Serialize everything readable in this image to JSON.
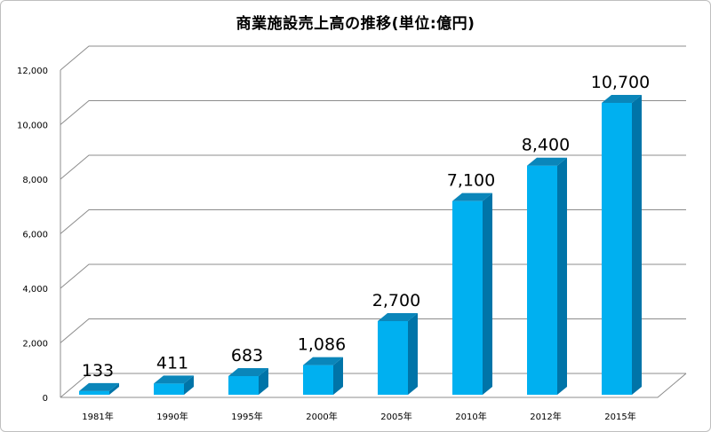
{
  "chart_data": {
    "type": "bar",
    "title": "商業施設売上高の推移(単位:億円)",
    "categories": [
      "1981年",
      "1990年",
      "1995年",
      "2000年",
      "2005年",
      "2010年",
      "2012年",
      "2015年"
    ],
    "values": [
      133,
      411,
      683,
      1086,
      2700,
      7100,
      8400,
      10700
    ],
    "data_labels": [
      "133",
      "411",
      "683",
      "1,086",
      "2,700",
      "7,100",
      "8,400",
      "10,700"
    ],
    "yticks": [
      "0",
      "2,000",
      "4,000",
      "6,000",
      "8,000",
      "10,000",
      "12,000"
    ],
    "ylim": [
      0,
      12000
    ],
    "grid": true,
    "legend": "none",
    "style": "3d-column",
    "colors": {
      "bar_front": "#00B0F0",
      "bar_side": "#0074A8",
      "bar_top": "#0A86BA"
    }
  }
}
